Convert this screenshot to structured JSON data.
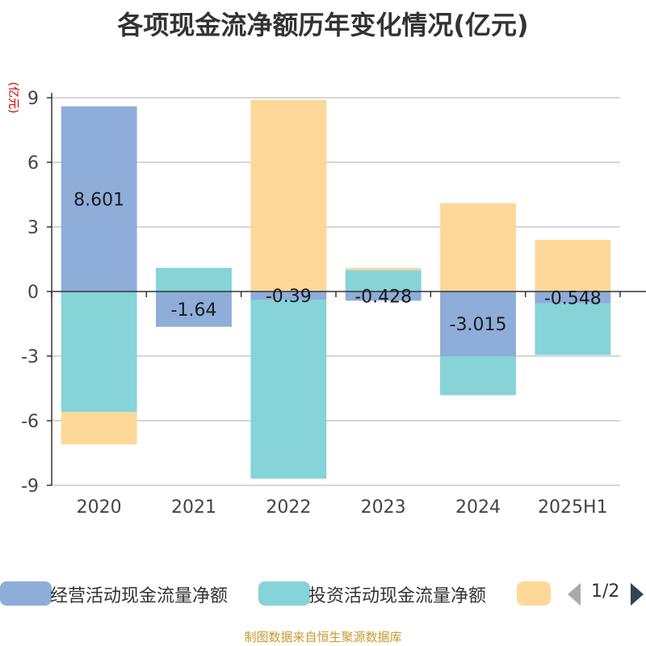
{
  "chart_data": {
    "type": "bar",
    "stacked": true,
    "title": "各项现金流净额历年变化情况(亿元)",
    "ylabel": "(亿元)",
    "categories": [
      "2020",
      "2021",
      "2022",
      "2023",
      "2024",
      "2025H1"
    ],
    "ylim": [
      -9,
      9
    ],
    "yticks": [
      -9,
      -6,
      -3,
      0,
      3,
      6,
      9
    ],
    "grid": true,
    "legend_position": "bottom",
    "series": [
      {
        "name": "经营活动现金流量净额",
        "color": "#8eadd9",
        "values": [
          8.601,
          -1.64,
          -0.39,
          -0.428,
          -3.015,
          -0.548
        ]
      },
      {
        "name": "投资活动现金流量净额",
        "color": "#86d3d8",
        "values": [
          -5.6,
          1.1,
          -8.3,
          1.0,
          -1.8,
          -2.4
        ]
      },
      {
        "name": "",
        "color": "#fed899",
        "values": [
          -1.5,
          0.0,
          8.9,
          0.1,
          4.1,
          2.4
        ]
      }
    ],
    "data_labels": [
      "8.601",
      "-1.64",
      "-0.39",
      "-0.428",
      "-3.015",
      "-0.548"
    ]
  },
  "legend": {
    "items": [
      "经营活动现金流量净额",
      "投资活动现金流量净额",
      ""
    ],
    "page": "1/2"
  },
  "footer": "制图数据来自恒生聚源数据库"
}
